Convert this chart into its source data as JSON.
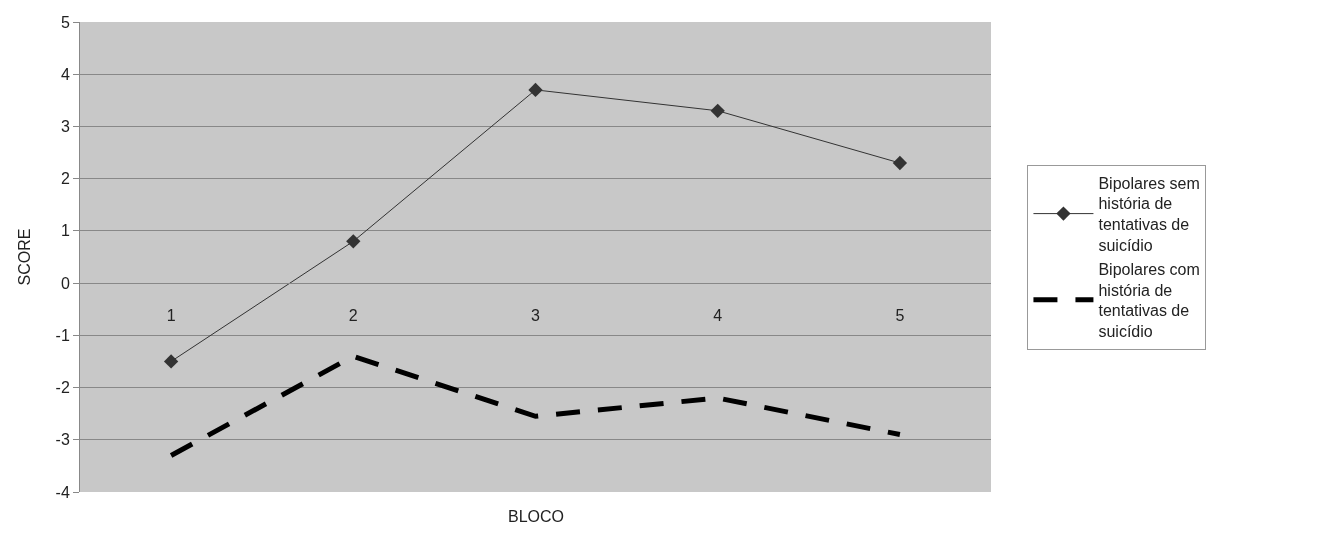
{
  "chart_data": {
    "type": "line",
    "xlabel": "BLOCO",
    "ylabel": "SCORE",
    "categories": [
      "1",
      "2",
      "3",
      "4",
      "5"
    ],
    "series": [
      {
        "name": "Bipolares sem história de tentativas de suicídio",
        "color": "#333333",
        "marker": "diamond",
        "line_style": "solid",
        "values": [
          -1.5,
          0.8,
          3.7,
          3.3,
          2.3
        ]
      },
      {
        "name": "Bipolares com história de tentativas de suicídio",
        "color": "#000000",
        "marker": "none",
        "line_style": "dashed",
        "values": [
          -3.3,
          -1.4,
          -2.55,
          -2.2,
          -2.9
        ]
      }
    ],
    "ylim": [
      -4,
      5
    ],
    "yticks": [
      -4,
      -3,
      -2,
      -1,
      0,
      1,
      2,
      3,
      4,
      5
    ],
    "grid": "y",
    "legend": "right"
  }
}
